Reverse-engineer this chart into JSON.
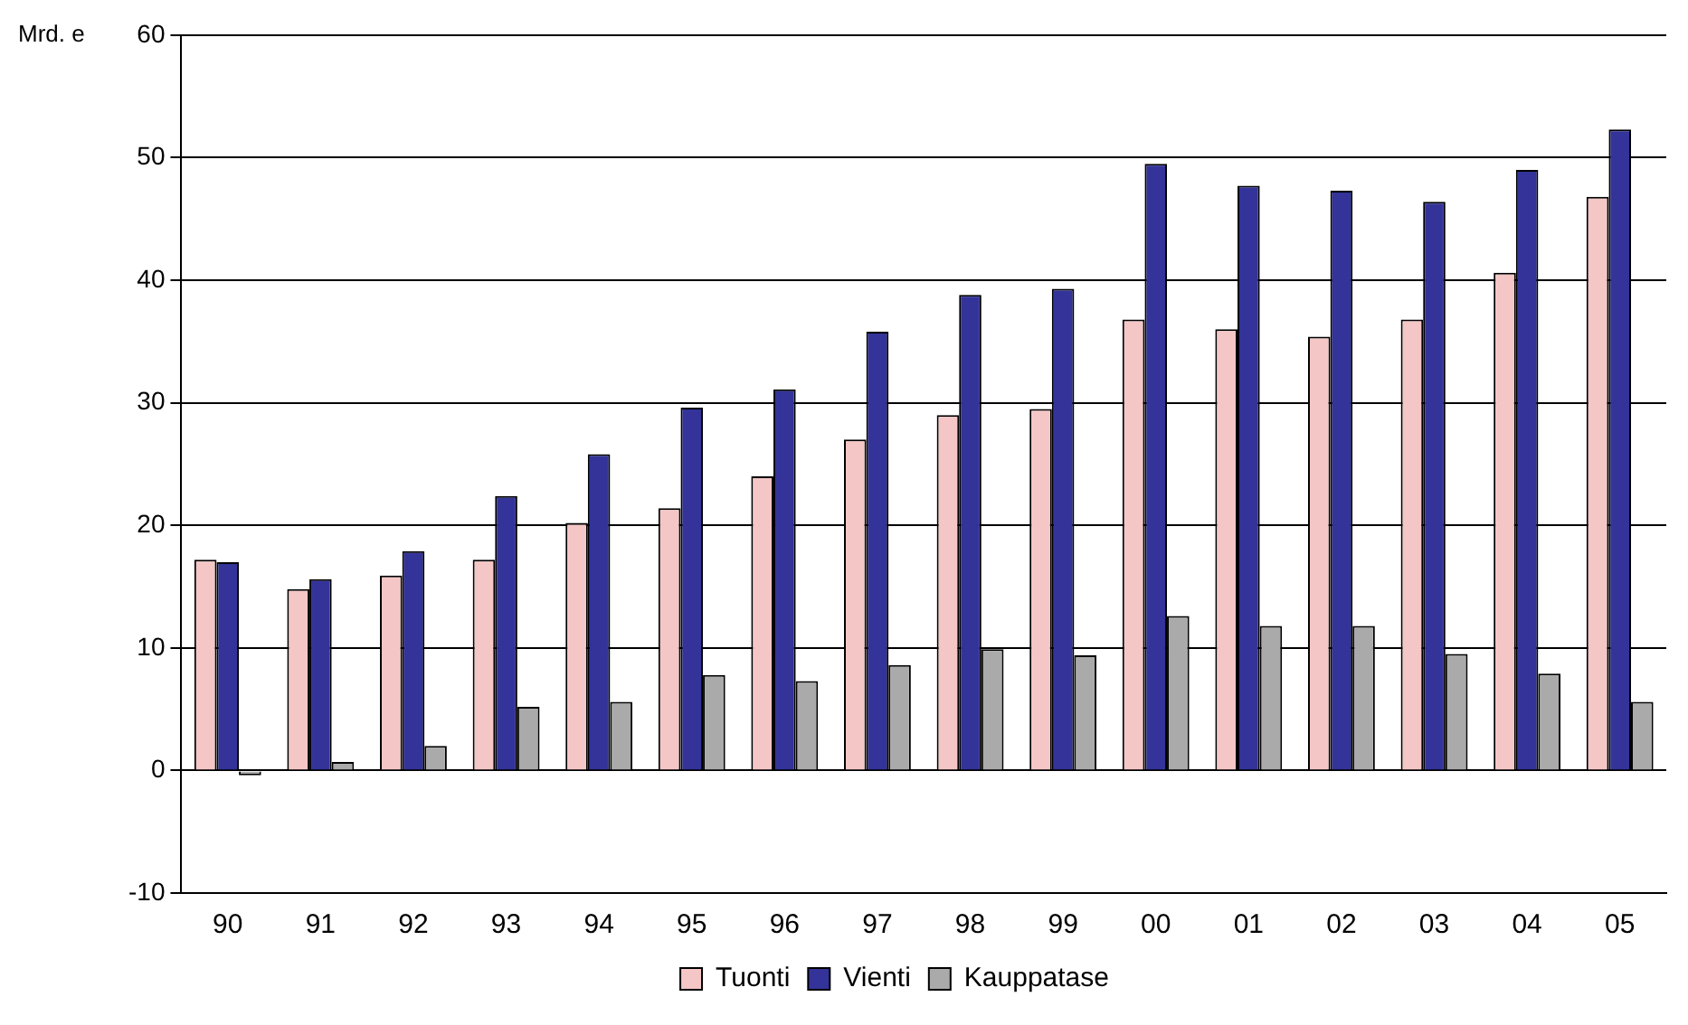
{
  "chart_data": {
    "type": "bar",
    "ylabel": "Mrd. e",
    "categories": [
      "90",
      "91",
      "92",
      "93",
      "94",
      "95",
      "96",
      "97",
      "98",
      "99",
      "00",
      "01",
      "02",
      "03",
      "04",
      "05"
    ],
    "series": [
      {
        "name": "Tuonti",
        "color": "#f4c6c6",
        "values": [
          17.2,
          14.8,
          15.9,
          17.2,
          20.2,
          21.4,
          24,
          27,
          29,
          29.5,
          36.8,
          36,
          35.4,
          36.8,
          40.6,
          46.8
        ]
      },
      {
        "name": "Vienti",
        "color": "#333399",
        "values": [
          17,
          15.6,
          17.9,
          22.4,
          25.8,
          29.6,
          31.1,
          35.8,
          38.8,
          39.3,
          49.5,
          47.7,
          47.3,
          46.4,
          49,
          52.3
        ]
      },
      {
        "name": "Kauppatase",
        "color": "#aaaaaa",
        "values": [
          -0.4,
          0.7,
          2,
          5.2,
          5.6,
          7.8,
          7.3,
          8.6,
          9.9,
          9.4,
          12.6,
          11.8,
          11.8,
          9.5,
          7.9,
          5.6
        ]
      }
    ],
    "ylim": [
      -10,
      60
    ],
    "yticks": [
      -10,
      0,
      10,
      20,
      30,
      40,
      50,
      60
    ],
    "grid": "y",
    "legend": "bottom"
  }
}
